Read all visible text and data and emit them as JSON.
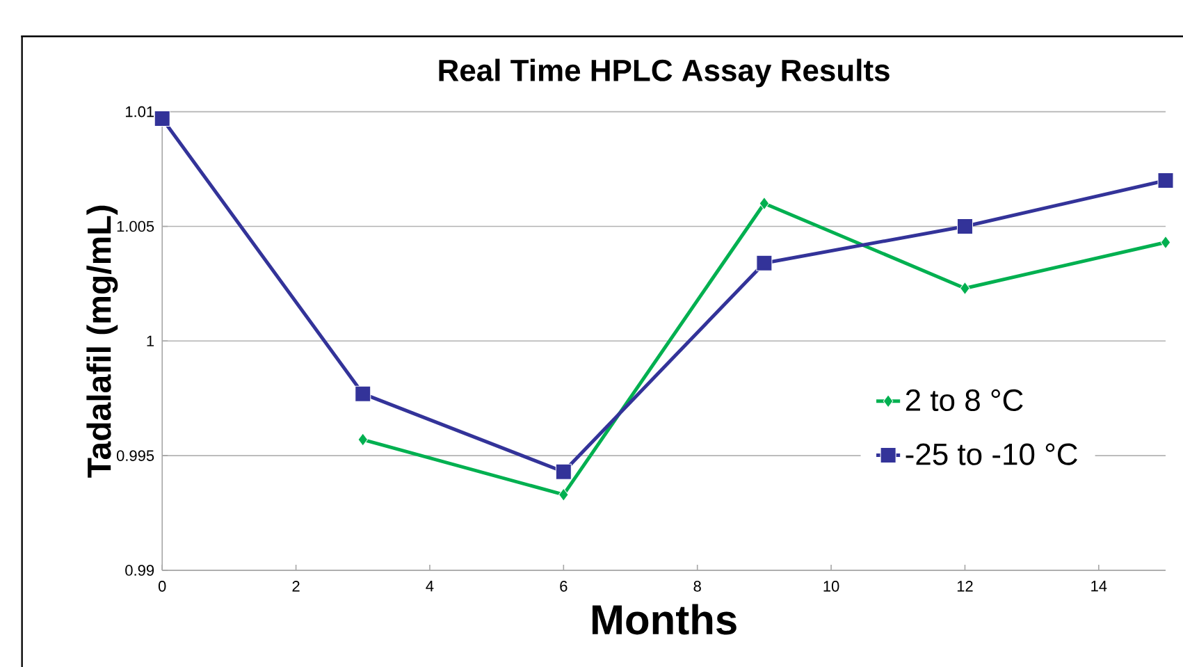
{
  "chart_data": {
    "type": "line",
    "title": "Real Time HPLC Assay Results",
    "xlabel": "Months",
    "ylabel": "Tadalafil (mg/mL)",
    "x": [
      0,
      3,
      6,
      9,
      12,
      15
    ],
    "series": [
      {
        "name": "2 to 8 °C",
        "color": "#00b050",
        "marker": "diamond",
        "values": [
          null,
          0.9957,
          0.9933,
          1.006,
          1.0023,
          1.0043
        ]
      },
      {
        "name": "-25 to -10 °C",
        "color": "#333399",
        "marker": "square",
        "values": [
          1.0097,
          0.9977,
          0.9943,
          1.0034,
          1.005,
          1.007
        ]
      }
    ],
    "xlim": [
      0,
      15
    ],
    "ylim": [
      0.99,
      1.01
    ],
    "xticks": [
      0,
      2,
      4,
      6,
      8,
      10,
      12,
      14
    ],
    "yticks": [
      0.99,
      0.995,
      1,
      1.005,
      1.01
    ],
    "grid": "y",
    "legend": "right",
    "line_style": "solid"
  }
}
